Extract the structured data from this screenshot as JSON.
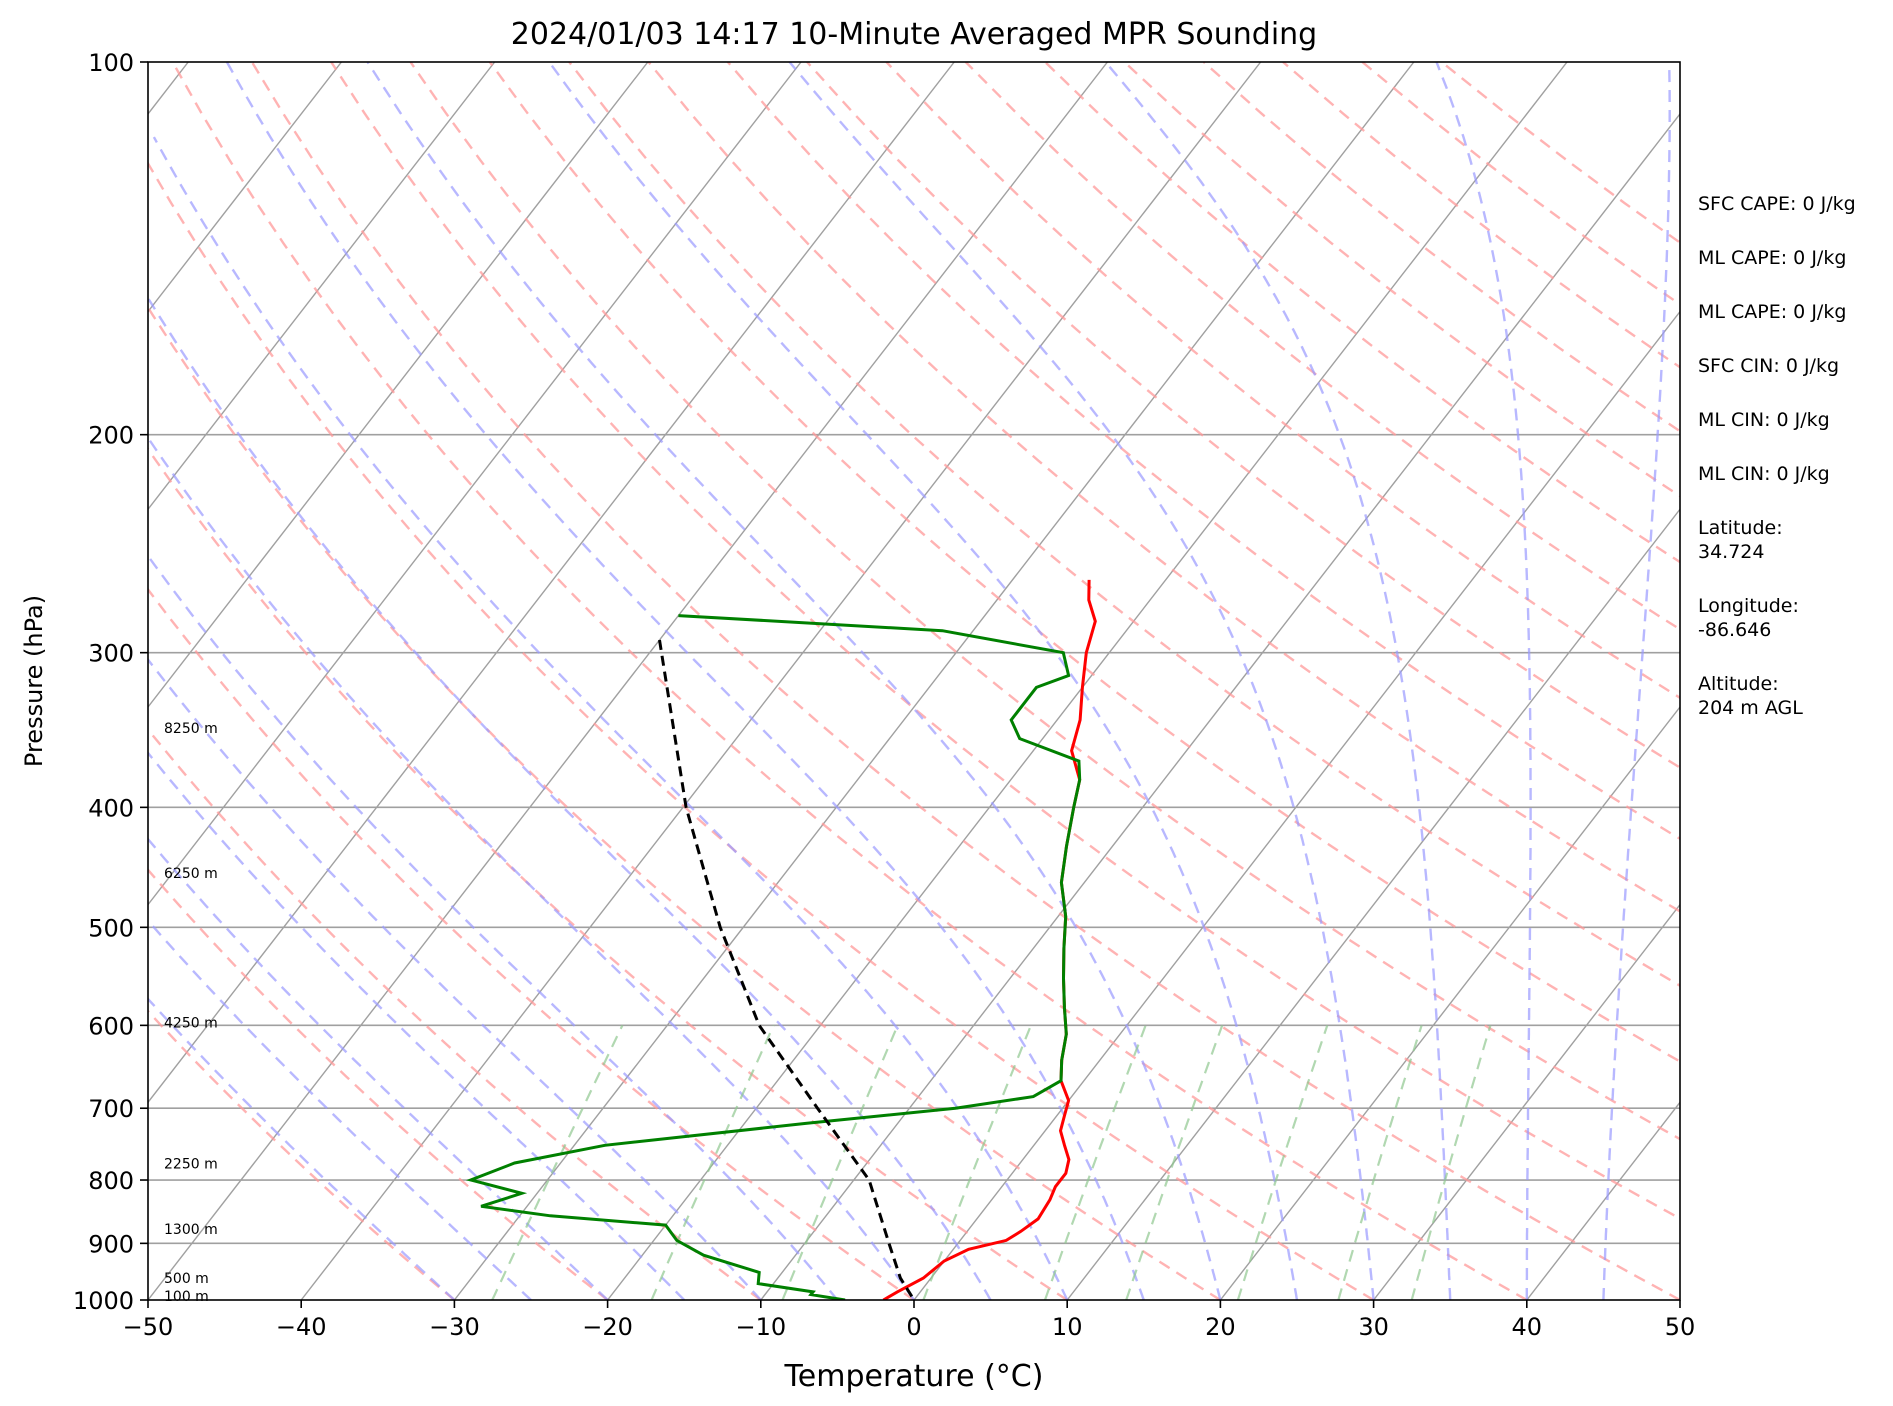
{
  "chart_data": {
    "type": "line",
    "chart_kind": "skew-T log-P sounding",
    "title": "2024/01/03 14:17 10-Minute Averaged MPR Sounding",
    "xlabel": "Temperature (°C)",
    "ylabel": "Pressure (hPa)",
    "xlim": [
      -50,
      50
    ],
    "ylim": [
      1000,
      100
    ],
    "y_scale": "log",
    "x_ticks": [
      -50,
      -40,
      -30,
      -20,
      -10,
      0,
      10,
      20,
      30,
      40,
      50
    ],
    "x_tick_labels": [
      "−50",
      "−40",
      "−30",
      "−20",
      "−10",
      "0",
      "10",
      "20",
      "30",
      "40",
      "50"
    ],
    "y_ticks": [
      100,
      200,
      300,
      400,
      500,
      600,
      700,
      800,
      900,
      1000
    ],
    "y_tick_labels": [
      "100",
      "200",
      "300",
      "400",
      "500",
      "600",
      "700",
      "800",
      "900",
      "1000"
    ],
    "grid": true,
    "height_labels": [
      {
        "p": 345,
        "text": "8250 m"
      },
      {
        "p": 452,
        "text": "6250 m"
      },
      {
        "p": 597,
        "text": "4250 m"
      },
      {
        "p": 776,
        "text": "2250 m"
      },
      {
        "p": 876,
        "text": "1300 m"
      },
      {
        "p": 960,
        "text": "500 m"
      },
      {
        "p": 993,
        "text": "100 m"
      }
    ],
    "series": [
      {
        "key": "temperature",
        "color": "#ff0000",
        "points": [
          [
            262,
            -25.0
          ],
          [
            272,
            -24.0
          ],
          [
            283,
            -22.5
          ],
          [
            300,
            -21.5
          ],
          [
            320,
            -20.0
          ],
          [
            340,
            -18.5
          ],
          [
            360,
            -17.5
          ],
          [
            380,
            -15.5
          ],
          [
            400,
            -14.5
          ],
          [
            430,
            -13.0
          ],
          [
            460,
            -11.5
          ],
          [
            490,
            -9.5
          ],
          [
            520,
            -8.0
          ],
          [
            550,
            -6.5
          ],
          [
            580,
            -5.0
          ],
          [
            610,
            -3.5
          ],
          [
            640,
            -2.5
          ],
          [
            665,
            -1.5
          ],
          [
            690,
            0.0
          ],
          [
            710,
            0.5
          ],
          [
            730,
            1.0
          ],
          [
            750,
            2.0
          ],
          [
            770,
            3.0
          ],
          [
            790,
            3.5
          ],
          [
            810,
            3.5
          ],
          [
            830,
            3.8
          ],
          [
            860,
            4.0
          ],
          [
            880,
            3.5
          ],
          [
            895,
            3.0
          ],
          [
            910,
            1.0
          ],
          [
            930,
            0.0
          ],
          [
            960,
            -0.5
          ],
          [
            985,
            -1.5
          ],
          [
            1000,
            -2.0
          ]
        ]
      },
      {
        "key": "dewpoint",
        "color": "#008000",
        "points": [
          [
            280,
            -50.0
          ],
          [
            288,
            -32.0
          ],
          [
            300,
            -23.0
          ],
          [
            313,
            -21.5
          ],
          [
            320,
            -23.0
          ],
          [
            330,
            -23.0
          ],
          [
            340,
            -23.0
          ],
          [
            352,
            -21.5
          ],
          [
            367,
            -16.5
          ],
          [
            380,
            -15.5
          ],
          [
            400,
            -14.5
          ],
          [
            430,
            -13.0
          ],
          [
            460,
            -11.5
          ],
          [
            490,
            -9.5
          ],
          [
            520,
            -8.0
          ],
          [
            550,
            -6.5
          ],
          [
            580,
            -5.0
          ],
          [
            610,
            -3.5
          ],
          [
            640,
            -2.5
          ],
          [
            665,
            -1.5
          ],
          [
            685,
            -2.5
          ],
          [
            700,
            -7.0
          ],
          [
            720,
            -16.0
          ],
          [
            750,
            -28.0
          ],
          [
            775,
            -33.0
          ],
          [
            800,
            -35.0
          ],
          [
            820,
            -31.0
          ],
          [
            840,
            -33.0
          ],
          [
            855,
            -28.0
          ],
          [
            870,
            -20.0
          ],
          [
            895,
            -18.5
          ],
          [
            920,
            -16.0
          ],
          [
            950,
            -11.5
          ],
          [
            970,
            -11.0
          ],
          [
            985,
            -7.0
          ],
          [
            990,
            -7.0
          ],
          [
            1000,
            -4.5
          ]
        ]
      },
      {
        "key": "parcel",
        "color": "#000000",
        "points": [
          [
            293,
            -50.0
          ],
          [
            400,
            -39.8
          ],
          [
            500,
            -31.5
          ],
          [
            600,
            -24.0
          ],
          [
            700,
            -16.0
          ],
          [
            800,
            -9.0
          ],
          [
            900,
            -4.5
          ],
          [
            960,
            -2.0
          ],
          [
            1000,
            0.0
          ]
        ]
      }
    ],
    "info_panel": [
      {
        "label": "SFC CAPE: 0 J/kg"
      },
      {
        "label": "ML CAPE: 0 J/kg"
      },
      {
        "label": "ML CAPE: 0 J/kg"
      },
      {
        "label": "SFC CIN: 0 J/kg"
      },
      {
        "label": "ML CIN: 0 J/kg"
      },
      {
        "label": "ML CIN: 0 J/kg"
      },
      {
        "label": "Latitude:",
        "value": "34.724"
      },
      {
        "label": "Longitude:",
        "value": "-86.646"
      },
      {
        "label": "Altitude:",
        "value": "204 m AGL"
      }
    ],
    "background_lines": {
      "isotherms_color": "#a0a0a0",
      "dry_adiabats_color": "#ff9a9a",
      "moist_adiabats_color": "#9a9aff",
      "mixing_ratio_color": "#90c890"
    }
  }
}
